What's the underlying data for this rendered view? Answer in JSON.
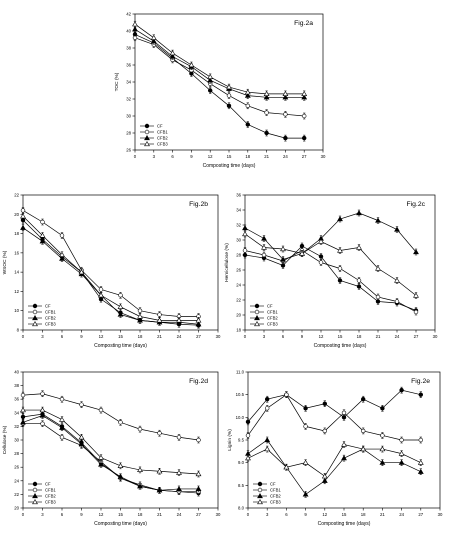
{
  "chart_data": [
    {
      "type": "line",
      "panel_label": "Fig.2a",
      "xlabel": "Composting time (days)",
      "ylabel": "TOC (%)",
      "xlim": [
        0,
        30
      ],
      "ylim": [
        26,
        42
      ],
      "xticks": [
        "0",
        "3",
        "6",
        "9",
        "12",
        "15",
        "18",
        "21",
        "24",
        "27",
        "30"
      ],
      "yticks": [
        "26",
        "28",
        "30",
        "32",
        "34",
        "36",
        "38",
        "40",
        "42"
      ],
      "x": [
        0,
        3,
        6,
        9,
        12,
        15,
        18,
        21,
        24,
        27
      ],
      "legend_position": "bottom-left",
      "series": [
        {
          "name": "CF",
          "marker": "filled-circle",
          "values": [
            39.6,
            38.6,
            36.8,
            35.0,
            33.0,
            31.2,
            29.0,
            28.0,
            27.4,
            27.4
          ]
        },
        {
          "name": "CFB1",
          "marker": "open-circle",
          "values": [
            39.2,
            38.4,
            36.6,
            35.4,
            33.8,
            32.4,
            31.2,
            30.4,
            30.2,
            30.0
          ]
        },
        {
          "name": "CFB2",
          "marker": "filled-triangle",
          "values": [
            40.2,
            38.8,
            37.0,
            35.8,
            34.2,
            33.2,
            32.4,
            32.2,
            32.2,
            32.2
          ]
        },
        {
          "name": "CFB3",
          "marker": "open-triangle",
          "values": [
            40.8,
            39.2,
            37.4,
            36.0,
            34.6,
            33.4,
            32.8,
            32.6,
            32.6,
            32.6
          ]
        }
      ]
    },
    {
      "type": "line",
      "panel_label": "Fig.2b",
      "xlabel": "Composting time (days)",
      "ylabel": "WSOC (%)",
      "xlim": [
        0,
        30
      ],
      "ylim": [
        8,
        22
      ],
      "xticks": [
        "0",
        "3",
        "6",
        "9",
        "12",
        "15",
        "18",
        "21",
        "24",
        "27",
        "30"
      ],
      "yticks": [
        "8",
        "10",
        "12",
        "14",
        "16",
        "18",
        "20",
        "22"
      ],
      "x": [
        0,
        3,
        6,
        9,
        12,
        15,
        18,
        21,
        24,
        27
      ],
      "legend_position": "bottom-left",
      "series": [
        {
          "name": "CF",
          "marker": "filled-circle",
          "values": [
            19.4,
            17.4,
            15.6,
            14.0,
            11.2,
            9.8,
            9.0,
            8.8,
            8.6,
            8.5
          ]
        },
        {
          "name": "CFB1",
          "marker": "open-circle",
          "values": [
            20.4,
            19.2,
            17.8,
            14.2,
            12.2,
            11.6,
            10.0,
            9.6,
            9.4,
            9.4
          ]
        },
        {
          "name": "CFB2",
          "marker": "filled-triangle",
          "values": [
            18.6,
            17.2,
            15.4,
            13.8,
            11.6,
            9.6,
            9.0,
            8.8,
            8.8,
            8.6
          ]
        },
        {
          "name": "CFB3",
          "marker": "open-triangle",
          "values": [
            19.8,
            17.8,
            15.8,
            14.0,
            11.6,
            10.4,
            9.4,
            9.0,
            9.0,
            9.0
          ]
        }
      ]
    },
    {
      "type": "line",
      "panel_label": "Fig.2c",
      "xlabel": "Composting time (days)",
      "ylabel": "Hemicellulose (%)",
      "xlim": [
        0,
        30
      ],
      "ylim": [
        18,
        36
      ],
      "xticks": [
        "0",
        "3",
        "6",
        "9",
        "12",
        "15",
        "18",
        "21",
        "24",
        "27",
        "30"
      ],
      "yticks": [
        "18",
        "20",
        "22",
        "24",
        "26",
        "28",
        "30",
        "32",
        "34",
        "36"
      ],
      "x": [
        0,
        3,
        6,
        9,
        12,
        15,
        18,
        21,
        24,
        27
      ],
      "legend_position": "bottom-left",
      "series": [
        {
          "name": "CF",
          "marker": "filled-circle",
          "values": [
            28.0,
            27.6,
            26.6,
            29.2,
            27.8,
            24.6,
            23.8,
            21.8,
            21.6,
            20.6
          ]
        },
        {
          "name": "CFB1",
          "marker": "open-circle",
          "values": [
            28.6,
            28.0,
            27.2,
            28.6,
            27.0,
            26.2,
            24.6,
            22.4,
            21.8,
            20.4
          ]
        },
        {
          "name": "CFB2",
          "marker": "filled-triangle",
          "values": [
            31.6,
            30.2,
            27.4,
            28.2,
            30.2,
            32.8,
            33.6,
            32.6,
            31.4,
            28.4
          ]
        },
        {
          "name": "CFB3",
          "marker": "open-triangle",
          "values": [
            30.8,
            29.0,
            28.8,
            28.2,
            29.8,
            28.6,
            29.0,
            26.2,
            24.6,
            22.6
          ]
        }
      ]
    },
    {
      "type": "line",
      "panel_label": "Fig.2d",
      "xlabel": "Composting time (days)",
      "ylabel": "Cellulose (%)",
      "xlim": [
        0,
        30
      ],
      "ylim": [
        20,
        40
      ],
      "xticks": [
        "0",
        "3",
        "6",
        "9",
        "12",
        "15",
        "18",
        "21",
        "24",
        "27",
        "30"
      ],
      "yticks": [
        "20",
        "22",
        "24",
        "26",
        "28",
        "30",
        "32",
        "34",
        "36",
        "38",
        "40"
      ],
      "x": [
        0,
        3,
        6,
        9,
        12,
        15,
        18,
        21,
        24,
        27
      ],
      "legend_position": "bottom-left",
      "series": [
        {
          "name": "CF",
          "marker": "filled-circle",
          "values": [
            33.4,
            33.8,
            32.0,
            29.6,
            26.6,
            24.4,
            23.2,
            22.6,
            22.4,
            22.2
          ]
        },
        {
          "name": "CFB1",
          "marker": "open-circle",
          "values": [
            32.4,
            32.4,
            30.4,
            29.2,
            26.8,
            24.4,
            23.4,
            22.6,
            22.4,
            22.4
          ]
        },
        {
          "name": "CFB2",
          "marker": "filled-triangle",
          "values": [
            32.6,
            33.6,
            31.8,
            29.4,
            26.4,
            24.6,
            23.2,
            22.6,
            22.8,
            22.8
          ]
        },
        {
          "name": "CFB3",
          "marker": "open-triangle",
          "values": [
            34.4,
            34.4,
            33.0,
            30.4,
            27.4,
            26.2,
            25.6,
            25.4,
            25.2,
            25.0
          ]
        },
        {
          "name": "",
          "marker": "open-circle",
          "values": [
            36.6,
            36.8,
            36.0,
            35.2,
            34.4,
            32.6,
            31.6,
            31.0,
            30.4,
            30.0
          ]
        }
      ]
    },
    {
      "type": "line",
      "panel_label": "Fig.2e",
      "xlabel": "Composting time (days)",
      "ylabel": "Lignin (%)",
      "xlim": [
        0,
        30
      ],
      "ylim": [
        8.0,
        11.0
      ],
      "xticks": [
        "0",
        "3",
        "6",
        "9",
        "12",
        "15",
        "18",
        "21",
        "24",
        "27",
        "30"
      ],
      "yticks": [
        "8.0",
        "8.5",
        "9.0",
        "9.5",
        "10.0",
        "10.5",
        "11.0"
      ],
      "x": [
        0,
        3,
        6,
        9,
        12,
        15,
        18,
        21,
        24,
        27
      ],
      "legend_position": "bottom-left",
      "series": [
        {
          "name": "CF",
          "marker": "filled-circle",
          "values": [
            9.9,
            10.4,
            10.5,
            10.2,
            10.3,
            10.0,
            10.4,
            10.2,
            10.6,
            10.5
          ]
        },
        {
          "name": "CFB1",
          "marker": "open-circle",
          "values": [
            9.6,
            10.2,
            10.5,
            9.8,
            9.7,
            10.1,
            9.7,
            9.6,
            9.5,
            9.5
          ]
        },
        {
          "name": "CFB2",
          "marker": "filled-triangle",
          "values": [
            9.2,
            9.5,
            8.9,
            8.3,
            8.6,
            9.1,
            9.3,
            9.0,
            9.0,
            8.8
          ]
        },
        {
          "name": "CFB3",
          "marker": "open-triangle",
          "values": [
            9.1,
            9.3,
            8.9,
            9.0,
            8.7,
            9.4,
            9.3,
            9.3,
            9.2,
            9.0
          ]
        }
      ]
    }
  ]
}
